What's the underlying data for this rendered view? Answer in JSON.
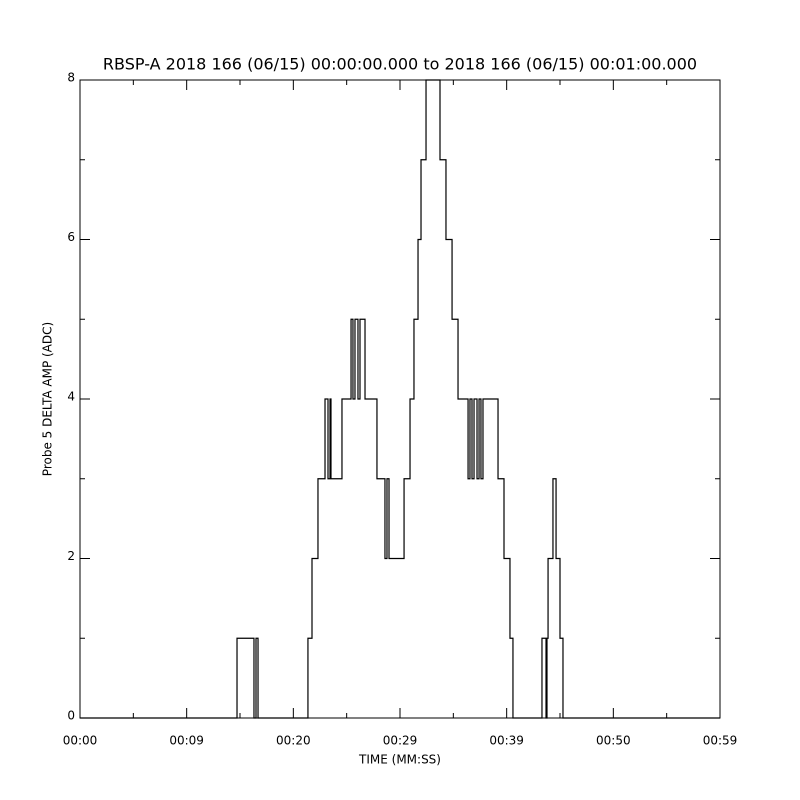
{
  "chart_data": {
    "type": "line",
    "drawstyle": "steps-post",
    "title": "RBSP-A 2018 166 (06/15) 00:00:00.000 to 2018 166 (06/15) 00:01:00.000",
    "xlabel": "TIME (MM:SS)",
    "ylabel": "Probe 5 DELTA AMP (ADC)",
    "color": "#000000",
    "xlim": [
      0,
      60
    ],
    "ylim": [
      0,
      8
    ],
    "xticks": [
      {
        "value": 0,
        "label": "00:00"
      },
      {
        "value": 10,
        "label": "00:09"
      },
      {
        "value": 20,
        "label": "00:20"
      },
      {
        "value": 30,
        "label": "00:29"
      },
      {
        "value": 40,
        "label": "00:39"
      },
      {
        "value": 50,
        "label": "00:50"
      },
      {
        "value": 60,
        "label": "00:59"
      }
    ],
    "xminorticks": [
      5,
      15,
      25,
      35,
      45,
      55
    ],
    "yticks": [
      0,
      2,
      4,
      6,
      8
    ],
    "yminorticks": [
      1,
      3,
      5,
      7
    ],
    "x": [
      0,
      14.72,
      16.31,
      16.5,
      16.69,
      21.37,
      21.75,
      22.31,
      22.97,
      23.25,
      23.44,
      23.53,
      24.56,
      25.41,
      25.59,
      25.78,
      26.06,
      26.25,
      26.72,
      27.84,
      28.59,
      28.78,
      28.97,
      30.38,
      30.94,
      31.31,
      31.69,
      31.97,
      32.44,
      33.75,
      34.31,
      34.88,
      35.44,
      36.38,
      36.56,
      36.75,
      36.94,
      37.22,
      37.41,
      37.59,
      37.78,
      39.19,
      39.75,
      40.31,
      40.59,
      43.31,
      43.69,
      43.78,
      43.88,
      44.34,
      44.63,
      45.0,
      45.28
    ],
    "values": [
      0,
      1,
      0,
      1,
      0,
      1,
      2,
      3,
      4,
      3,
      4,
      3,
      4,
      5,
      4,
      5,
      4,
      5,
      4,
      3,
      2,
      3,
      2,
      3,
      4,
      5,
      6,
      7,
      8,
      7,
      6,
      5,
      4,
      3,
      4,
      3,
      4,
      3,
      4,
      3,
      4,
      3,
      2,
      1,
      0,
      1,
      0,
      1,
      2,
      3,
      2,
      1,
      0
    ]
  }
}
